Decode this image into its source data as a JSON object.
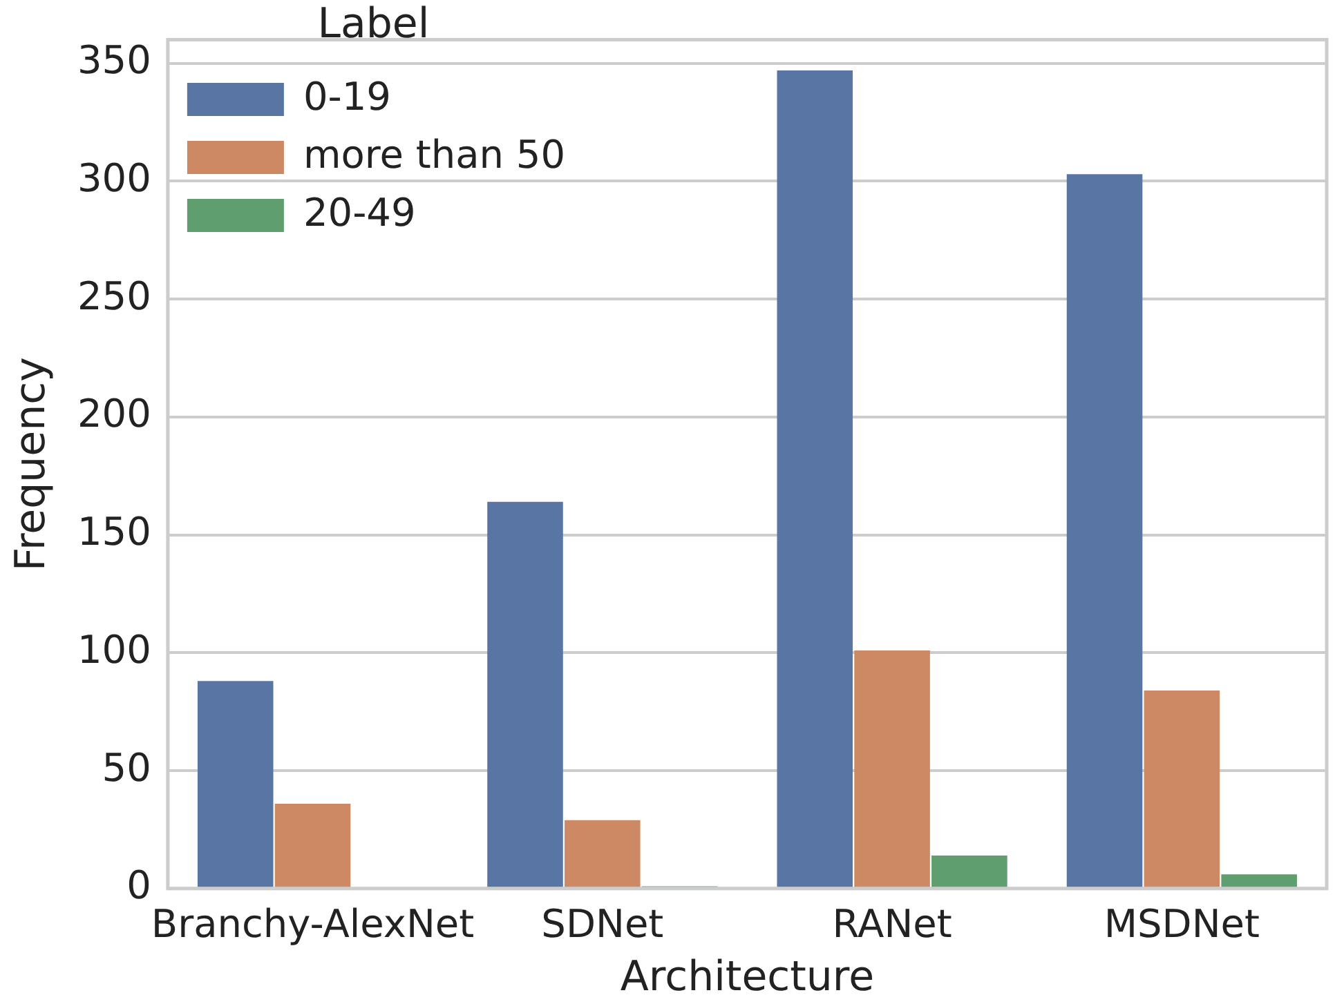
{
  "chart_data": {
    "type": "bar",
    "xlabel": "Architecture",
    "ylabel": "Frequency",
    "legend_title": "Label",
    "categories": [
      "Branchy-AlexNet",
      "SDNet",
      "RANet",
      "MSDNet"
    ],
    "series": [
      {
        "name": "0-19",
        "color": "#5975a4",
        "values": [
          88,
          164,
          347,
          303
        ]
      },
      {
        "name": "more than 50",
        "color": "#cc8963",
        "values": [
          36,
          29,
          101,
          84
        ]
      },
      {
        "name": "20-49",
        "color": "#5f9e6e",
        "values": [
          0,
          1,
          14,
          6
        ]
      }
    ],
    "ylim": [
      0,
      360
    ],
    "yticks": [
      0,
      50,
      100,
      150,
      200,
      250,
      300,
      350
    ],
    "grid": "y",
    "legend": "top left"
  }
}
